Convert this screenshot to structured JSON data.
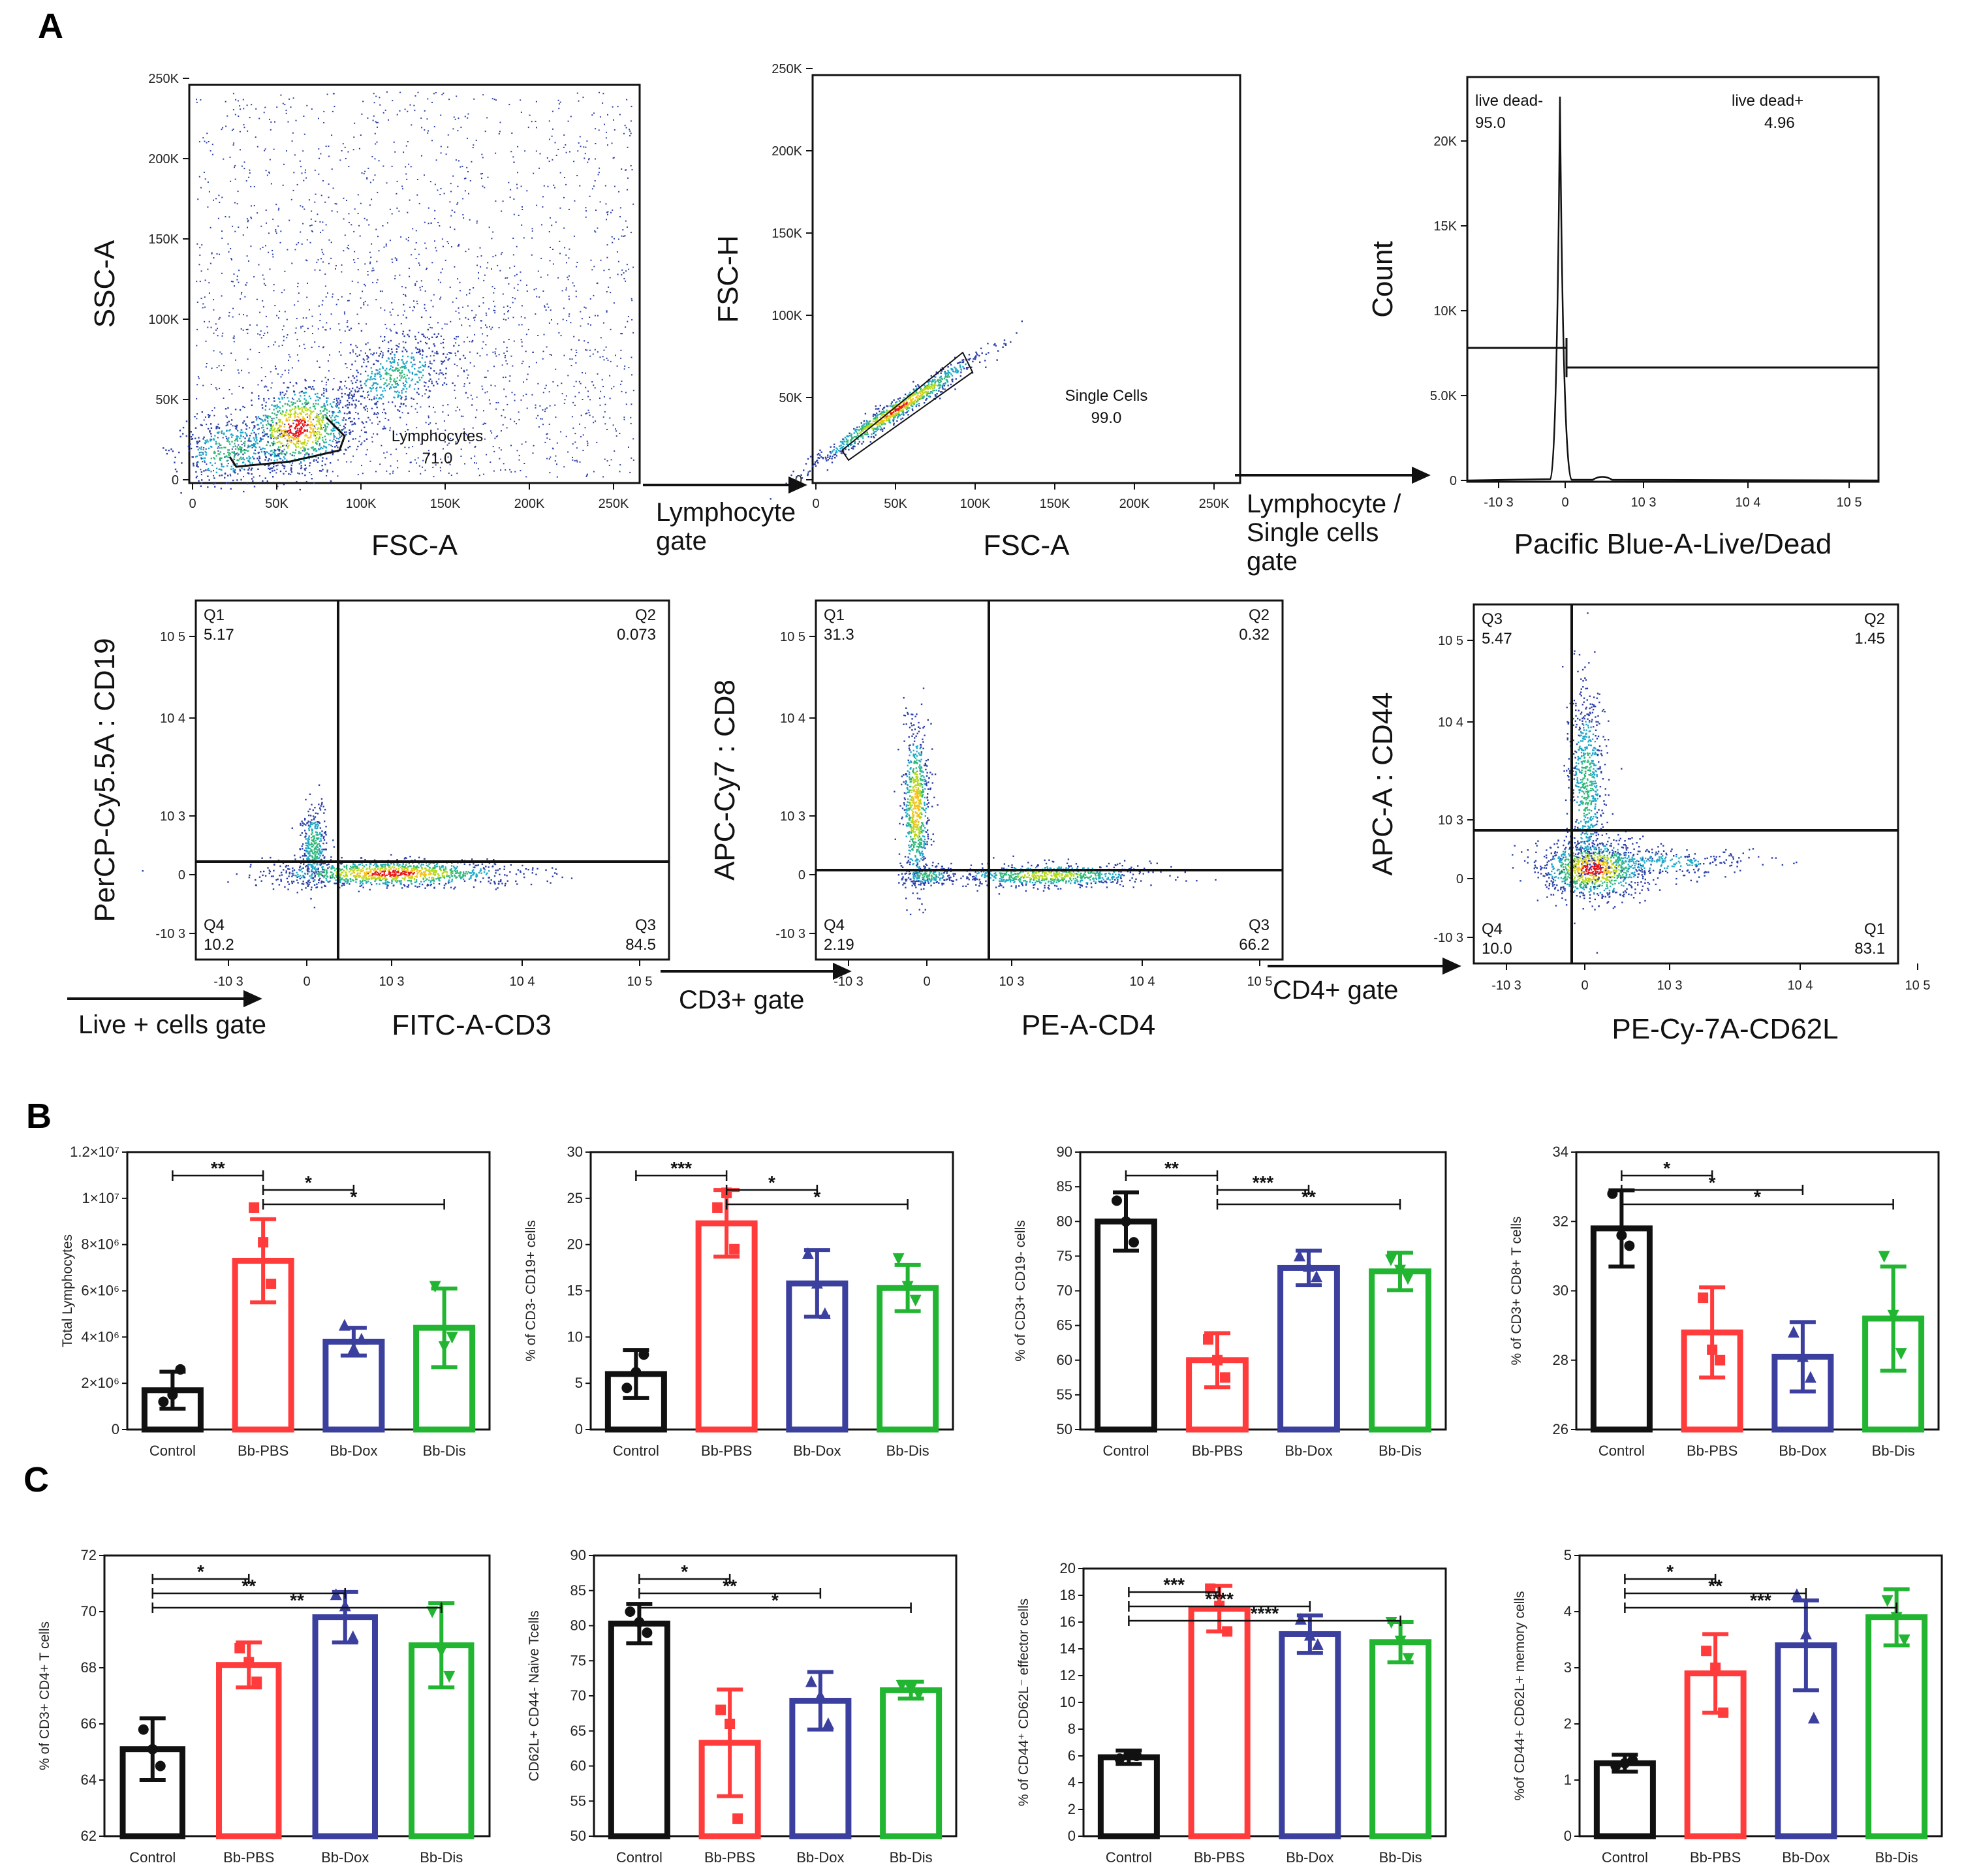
{
  "panel_labels": {
    "a": "A",
    "b": "B",
    "c": "C"
  },
  "colors": {
    "control": "#111111",
    "pbs": "#ff3b3b",
    "dox": "#3b3f9e",
    "dis": "#22b532"
  },
  "groups": [
    "Control",
    "Bb-PBS",
    "Bb-Dox",
    "Bb-Dis"
  ],
  "chart_data": [
    {
      "id": "f1",
      "type": "scatter",
      "xlabel": "FSC-A",
      "ylabel": "SSC-A",
      "xticks": [
        "0",
        "50K",
        "100K",
        "150K",
        "200K",
        "250K"
      ],
      "yticks": [
        "0",
        "50K",
        "100K",
        "150K",
        "200K",
        "250K"
      ],
      "gates": [
        {
          "name": "Lymphocytes",
          "value": "71.0"
        }
      ]
    },
    {
      "id": "f2",
      "type": "scatter",
      "xlabel": "FSC-A",
      "ylabel": "FSC-H",
      "xticks": [
        "0",
        "50K",
        "100K",
        "150K",
        "200K",
        "250K"
      ],
      "yticks": [
        "0",
        "50K",
        "100K",
        "150K",
        "200K",
        "250K"
      ],
      "gates": [
        {
          "name": "Single Cells",
          "value": "99.0"
        }
      ]
    },
    {
      "id": "f3",
      "type": "line",
      "xlabel": "Pacific Blue-A-Live/Dead",
      "ylabel": "Count",
      "yticks": [
        "0",
        "5.0K",
        "10K",
        "15K",
        "20K"
      ],
      "xticks": [
        "-10 3",
        "0",
        "10 3",
        "10 4",
        "10 5"
      ],
      "gates": [
        {
          "name": "live dead-",
          "value": "95.0"
        },
        {
          "name": "live dead+",
          "value": "4.96"
        }
      ]
    },
    {
      "id": "f4",
      "type": "scatter",
      "xlabel": "FITC-A-CD3",
      "ylabel": "PerCP-Cy5.5A : CD19",
      "xticks": [
        "-10 3",
        "0",
        "10 3",
        "10 4",
        "10 5"
      ],
      "yticks": [
        "10 5",
        "10 4",
        "10 3",
        "0",
        "-10 3"
      ],
      "quadrants": [
        {
          "name": "Q1",
          "value": "5.17"
        },
        {
          "name": "Q2",
          "value": "0.073"
        },
        {
          "name": "Q3",
          "value": "84.5"
        },
        {
          "name": "Q4",
          "value": "10.2"
        }
      ]
    },
    {
      "id": "f5",
      "type": "scatter",
      "xlabel": "PE-A-CD4",
      "ylabel": "APC-Cy7 : CD8",
      "xticks": [
        "-10 3",
        "0",
        "10 3",
        "10 4",
        "10 5"
      ],
      "yticks": [
        "10 5",
        "10 4",
        "10 3",
        "0",
        "-10 3"
      ],
      "quadrants": [
        {
          "name": "Q1",
          "value": "31.3"
        },
        {
          "name": "Q2",
          "value": "0.32"
        },
        {
          "name": "Q3",
          "value": "66.2"
        },
        {
          "name": "Q4",
          "value": "2.19"
        }
      ]
    },
    {
      "id": "f6",
      "type": "scatter",
      "xlabel": "PE-Cy-7A-CD62L",
      "ylabel": "APC-A : CD44",
      "xticks": [
        "-10 3",
        "0",
        "10 3",
        "10 4",
        "10 5"
      ],
      "yticks": [
        "10 5",
        "10 4",
        "10 3",
        "0",
        "-10 3"
      ],
      "quadrants": [
        {
          "name": "Q3",
          "value": "5.47"
        },
        {
          "name": "Q2",
          "value": "1.45"
        },
        {
          "name": "Q1",
          "value": "83.1"
        },
        {
          "name": "Q4",
          "value": "10.0"
        }
      ]
    },
    {
      "id": "b1",
      "type": "bar",
      "ylabel": "Total Lymphocytes",
      "categories": [
        "Control",
        "Bb-PBS",
        "Bb-Dox",
        "Bb-Dis"
      ],
      "values": [
        1.7,
        7.3,
        3.8,
        4.4
      ],
      "errors": [
        0.8,
        1.8,
        0.6,
        1.7
      ],
      "ylim": [
        0,
        12
      ],
      "yticks": [
        "0",
        "2×10⁶",
        "4×10⁶",
        "6×10⁶",
        "8×10⁶",
        "1×10⁷",
        "1.2×10⁷"
      ],
      "points": [
        [
          1.2,
          2.6,
          1.5
        ],
        [
          9.6,
          6.3,
          8.1
        ],
        [
          4.5,
          3.9,
          3.5
        ],
        [
          6.2,
          4.0,
          3.6
        ]
      ],
      "sig": [
        {
          "a": 0,
          "b": 1,
          "l": "**"
        },
        {
          "a": 1,
          "b": 2,
          "l": "*"
        },
        {
          "a": 1,
          "b": 3,
          "l": "*"
        }
      ]
    },
    {
      "id": "b2",
      "type": "bar",
      "ylabel": "% of CD3- CD19+ cells",
      "categories": [
        "Control",
        "Bb-PBS",
        "Bb-Dox",
        "Bb-Dis"
      ],
      "values": [
        6,
        22.3,
        15.8,
        15.3
      ],
      "errors": [
        2.6,
        3.6,
        3.6,
        2.5
      ],
      "ylim": [
        0,
        30
      ],
      "yticks": [
        "0",
        "5",
        "10",
        "15",
        "20",
        "25",
        "30"
      ],
      "points": [
        [
          4.5,
          8.1,
          6.2
        ],
        [
          24,
          19.5,
          25.6
        ],
        [
          19,
          12.5,
          15.8
        ],
        [
          18.5,
          14,
          15.5
        ]
      ],
      "sig": [
        {
          "a": 0,
          "b": 1,
          "l": "***"
        },
        {
          "a": 1,
          "b": 2,
          "l": "*"
        },
        {
          "a": 1,
          "b": 3,
          "l": "*"
        }
      ]
    },
    {
      "id": "b3",
      "type": "bar",
      "ylabel": "% of CD3+ CD19- cells",
      "categories": [
        "Control",
        "Bb-PBS",
        "Bb-Dox",
        "Bb-Dis"
      ],
      "values": [
        80,
        60,
        73.3,
        72.8
      ],
      "errors": [
        4.2,
        3.9,
        2.5,
        2.7
      ],
      "ylim": [
        50,
        90
      ],
      "yticks": [
        "50",
        "55",
        "60",
        "65",
        "70",
        "75",
        "80",
        "85",
        "90"
      ],
      "points": [
        [
          83,
          77,
          80
        ],
        [
          63,
          57.5,
          60
        ],
        [
          75,
          72,
          73.5
        ],
        [
          74.5,
          71.8,
          73
        ]
      ],
      "sig": [
        {
          "a": 0,
          "b": 1,
          "l": "**"
        },
        {
          "a": 1,
          "b": 2,
          "l": "***"
        },
        {
          "a": 1,
          "b": 3,
          "l": "**"
        }
      ]
    },
    {
      "id": "b4",
      "type": "bar",
      "ylabel": "% of CD3+ CD8+ T cells",
      "categories": [
        "Control",
        "Bb-PBS",
        "Bb-Dox",
        "Bb-Dis"
      ],
      "values": [
        31.8,
        28.8,
        28.1,
        29.2
      ],
      "errors": [
        1.1,
        1.3,
        1.0,
        1.5
      ],
      "ylim": [
        26,
        34
      ],
      "yticks": [
        "26",
        "28",
        "30",
        "32",
        "34"
      ],
      "points": [
        [
          32.8,
          31.3,
          31.6
        ],
        [
          29.8,
          28,
          28.3
        ],
        [
          28.8,
          27.5,
          28.1
        ],
        [
          31,
          28.2,
          29.3
        ]
      ],
      "sig": [
        {
          "a": 0,
          "b": 1,
          "l": "*"
        },
        {
          "a": 0,
          "b": 2,
          "l": "*"
        },
        {
          "a": 0,
          "b": 3,
          "l": "*"
        }
      ]
    },
    {
      "id": "c1",
      "type": "bar",
      "ylabel": "% of CD3+ CD4+ T cells",
      "categories": [
        "Control",
        "Bb-PBS",
        "Bb-Dox",
        "Bb-Dis"
      ],
      "values": [
        65.1,
        68.1,
        69.8,
        68.8
      ],
      "errors": [
        1.1,
        0.8,
        0.9,
        1.5
      ],
      "ylim": [
        62,
        72
      ],
      "yticks": [
        "62",
        "64",
        "66",
        "68",
        "70",
        "72"
      ],
      "points": [
        [
          65.8,
          64.5,
          65.1
        ],
        [
          68.7,
          67.5,
          68.2
        ],
        [
          70.6,
          69.1,
          70.2
        ],
        [
          70,
          67.7,
          68.6
        ]
      ],
      "sig": [
        {
          "a": 0,
          "b": 1,
          "l": "*"
        },
        {
          "a": 0,
          "b": 2,
          "l": "**"
        },
        {
          "a": 0,
          "b": 3,
          "l": "**"
        }
      ]
    },
    {
      "id": "c2",
      "type": "bar",
      "ylabel": "CD62L+ CD44- Naive Tcells",
      "categories": [
        "Control",
        "Bb-PBS",
        "Bb-Dox",
        "Bb-Dis"
      ],
      "values": [
        80.3,
        63.3,
        69.3,
        70.8
      ],
      "errors": [
        2.8,
        7.6,
        4.1,
        1.2
      ],
      "ylim": [
        50,
        90
      ],
      "yticks": [
        "50",
        "55",
        "60",
        "65",
        "70",
        "75",
        "80",
        "85",
        "90"
      ],
      "points": [
        [
          82,
          79,
          80.5
        ],
        [
          68,
          52.5,
          66
        ],
        [
          72,
          66,
          70
        ],
        [
          71.5,
          70.2,
          71
        ]
      ],
      "sig": [
        {
          "a": 0,
          "b": 1,
          "l": "*"
        },
        {
          "a": 0,
          "b": 2,
          "l": "**"
        },
        {
          "a": 0,
          "b": 3,
          "l": "*"
        }
      ]
    },
    {
      "id": "c3",
      "type": "bar",
      "ylabel": "% of CD44⁺ CD62L⁻ effector cells",
      "categories": [
        "Control",
        "Bb-PBS",
        "Bb-Dox",
        "Bb-Dis"
      ],
      "values": [
        5.9,
        17,
        15.1,
        14.5
      ],
      "errors": [
        0.5,
        1.7,
        1.4,
        1.5
      ],
      "ylim": [
        0,
        20
      ],
      "yticks": [
        "0",
        "2",
        "4",
        "6",
        "8",
        "10",
        "12",
        "14",
        "16",
        "18",
        "20"
      ],
      "points": [
        [
          5.8,
          6,
          6.1
        ],
        [
          18.5,
          15.3,
          17.2
        ],
        [
          16.2,
          14.3,
          15
        ],
        [
          16,
          13.3,
          14.6
        ]
      ],
      "sig": [
        {
          "a": 0,
          "b": 1,
          "l": "***"
        },
        {
          "a": 0,
          "b": 2,
          "l": "****"
        },
        {
          "a": 0,
          "b": 3,
          "l": "****"
        }
      ]
    },
    {
      "id": "c4",
      "type": "bar",
      "ylabel": "%of CD44+ CD62L+ memory cells",
      "categories": [
        "Control",
        "Bb-PBS",
        "Bb-Dox",
        "Bb-Dis"
      ],
      "values": [
        1.3,
        2.9,
        3.4,
        3.9
      ],
      "errors": [
        0.15,
        0.7,
        0.8,
        0.5
      ],
      "ylim": [
        0,
        5
      ],
      "yticks": [
        "0",
        "1",
        "2",
        "3",
        "4",
        "5"
      ],
      "points": [
        [
          1.25,
          1.35,
          1.3
        ],
        [
          3.3,
          2.2,
          3
        ],
        [
          4.3,
          2.1,
          3.6
        ],
        [
          4.2,
          3.5,
          3.9
        ]
      ],
      "sig": [
        {
          "a": 0,
          "b": 1,
          "l": "*"
        },
        {
          "a": 0,
          "b": 2,
          "l": "**"
        },
        {
          "a": 0,
          "b": 3,
          "l": "***"
        }
      ]
    }
  ],
  "gating_labels": {
    "lymph": "Lymphocyte gate",
    "single": "Lymphocyte / Single cells gate",
    "live": "Live + cells gate",
    "cd3": "CD3+ gate",
    "cd4": "CD4+ gate"
  }
}
